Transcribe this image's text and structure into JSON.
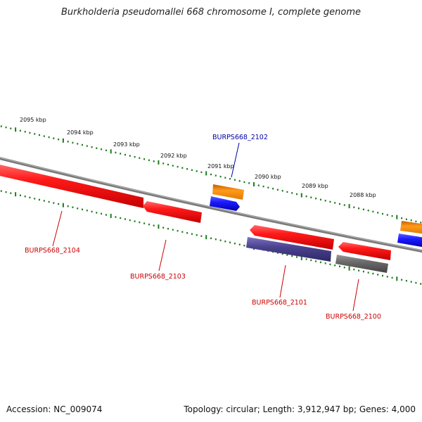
{
  "title": "Burkholderia pseudomallei 668 chromosome I, complete genome",
  "footer": {
    "accession_label": "Accession: NC_009074",
    "summary": "Topology: circular; Length: 3,912,947 bp; Genes: 4,000"
  },
  "kbp_labels": [
    "2095 kbp",
    "2094 kbp",
    "2093 kbp",
    "2092 kbp",
    "2091 kbp",
    "2090 kbp",
    "2089 kbp",
    "2088 kbp"
  ],
  "genes": [
    {
      "id": "BURPS668_2104",
      "strand": "forward",
      "color": "#e60000"
    },
    {
      "id": "BURPS668_2103",
      "strand": "forward",
      "color": "#e60000"
    },
    {
      "id": "BURPS668_2102",
      "strand": "reverse",
      "color": "#1a1aff"
    },
    {
      "id": "BURPS668_2101",
      "strand": "forward",
      "color": "#e60000"
    },
    {
      "id": "BURPS668_2100",
      "strand": "forward",
      "color": "#e60000"
    }
  ],
  "colors": {
    "backbone": "#7a7a7a",
    "ticks": "#1f7a1f",
    "cds_forward": "#e60000",
    "cds_reverse": "#1a1aff",
    "gene_reverse": "#f08000",
    "other_forward": "#4b4390",
    "other_forward_2": "#6a6a6a",
    "label_forward": "#cc0000",
    "label_reverse": "#0000aa"
  }
}
